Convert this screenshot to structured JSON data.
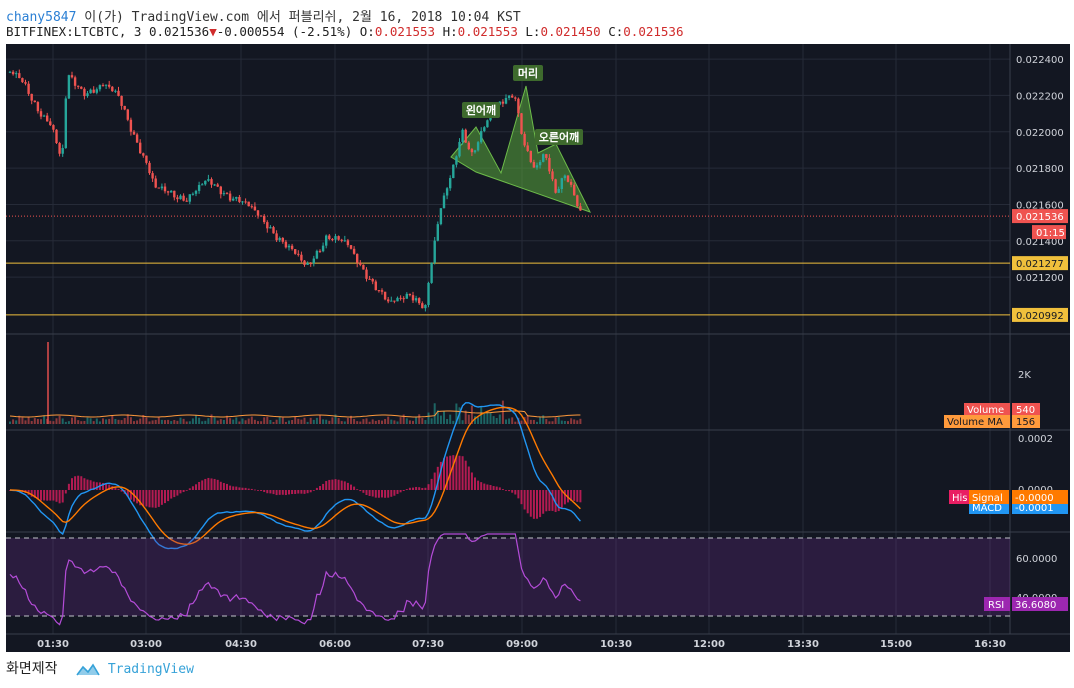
{
  "header": {
    "author": "chany5847",
    "line1_rest": " 이(가) TradingView.com 에서 퍼블리쉬, 2월 16, 2018 10:04 KST",
    "symbol": "BITFINEX:LTCBTC, 3",
    "last": "0.021536",
    "change": "-0.000554",
    "change_pct": "(-2.51%)",
    "o_label": "O:",
    "o": "0.021553",
    "h_label": "H:",
    "h": "0.021553",
    "l_label": "L:",
    "l": "0.021450",
    "c_label": "C:",
    "c": "0.021536"
  },
  "footer": {
    "snapshot": "화면제작",
    "brand": "TradingView"
  },
  "colors": {
    "background": "#131722",
    "up": "#26a69a",
    "down": "#ef5350",
    "support": "#f0c03c",
    "pattern_fill": "#5aa83c",
    "macd": "#2196f3",
    "signal": "#ff7a00",
    "rsi": "#b44cd8"
  },
  "price_axis": {
    "ticks": [
      "0.022400",
      "0.022200",
      "0.022000",
      "0.021800",
      "0.021600",
      "0.021400",
      "0.021200"
    ],
    "last_price": "0.021536",
    "countdown": "01:15",
    "support_levels": [
      "0.021277",
      "0.020992"
    ]
  },
  "pattern_labels": [
    "왼어깨",
    "머리",
    "오른어깨"
  ],
  "volume_axis": {
    "tick": "2K",
    "volume_label": "Volume",
    "volume_value": "540",
    "ma_label": "Volume MA",
    "ma_value": "156"
  },
  "macd_axis": {
    "ticks": [
      "0.0002",
      "0.0000"
    ],
    "hist_label": "His",
    "signal_label": "Signal",
    "signal_value": "-0.0000",
    "macd_label": "MACD",
    "macd_value": "-0.0001"
  },
  "rsi_axis": {
    "ticks": [
      "60.0000",
      "40.0000"
    ],
    "label": "RSI",
    "value": "36.6080"
  },
  "time_axis": [
    "01:30",
    "03:00",
    "04:30",
    "06:00",
    "07:30",
    "09:00",
    "10:30",
    "12:00",
    "13:30",
    "15:00",
    "16:30"
  ],
  "chart_data": {
    "type": "candlestick",
    "symbol": "BITFINEX:LTCBTC",
    "interval": "3",
    "last": 0.021536,
    "y_range": [
      0.02092,
      0.02245
    ],
    "support": [
      0.021277,
      0.020992
    ],
    "path_points": [
      {
        "t": "00:55",
        "p": 0.02233
      },
      {
        "t": "01:05",
        "p": 0.02228
      },
      {
        "t": "01:20",
        "p": 0.02214
      },
      {
        "t": "01:35",
        "p": 0.02205
      },
      {
        "t": "01:45",
        "p": 0.02182
      },
      {
        "t": "01:50",
        "p": 0.0223
      },
      {
        "t": "02:05",
        "p": 0.02222
      },
      {
        "t": "02:25",
        "p": 0.02226
      },
      {
        "t": "02:40",
        "p": 0.02218
      },
      {
        "t": "03:05",
        "p": 0.02185
      },
      {
        "t": "03:15",
        "p": 0.02168
      },
      {
        "t": "03:45",
        "p": 0.02164
      },
      {
        "t": "04:05",
        "p": 0.02172
      },
      {
        "t": "04:35",
        "p": 0.02163
      },
      {
        "t": "05:05",
        "p": 0.02148
      },
      {
        "t": "05:40",
        "p": 0.02125
      },
      {
        "t": "06:00",
        "p": 0.02143
      },
      {
        "t": "06:20",
        "p": 0.02137
      },
      {
        "t": "06:40",
        "p": 0.02121
      },
      {
        "t": "07:00",
        "p": 0.02104
      },
      {
        "t": "07:20",
        "p": 0.02112
      },
      {
        "t": "07:35",
        "p": 0.02103
      },
      {
        "t": "07:40",
        "p": 0.02125
      },
      {
        "t": "07:50",
        "p": 0.02158
      },
      {
        "t": "08:00",
        "p": 0.02178
      },
      {
        "t": "08:10",
        "p": 0.02202
      },
      {
        "t": "08:20",
        "p": 0.02186
      },
      {
        "t": "08:35",
        "p": 0.02206
      },
      {
        "t": "08:45",
        "p": 0.02217
      },
      {
        "t": "09:00",
        "p": 0.02222
      },
      {
        "t": "09:10",
        "p": 0.02191
      },
      {
        "t": "09:20",
        "p": 0.02178
      },
      {
        "t": "09:30",
        "p": 0.0219
      },
      {
        "t": "09:40",
        "p": 0.02168
      },
      {
        "t": "09:50",
        "p": 0.02176
      },
      {
        "t": "10:00",
        "p": 0.0216
      },
      {
        "t": "10:05",
        "p": 0.021536
      }
    ]
  }
}
